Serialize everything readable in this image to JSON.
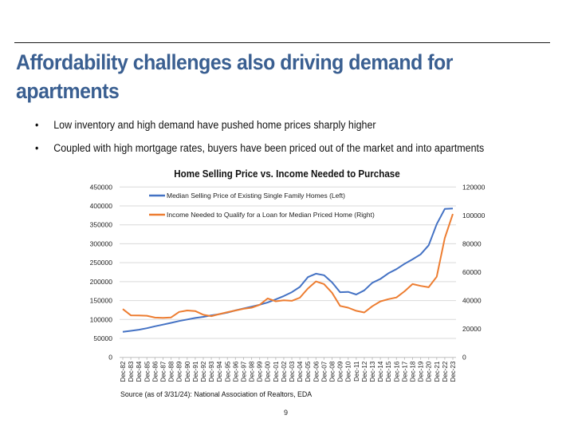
{
  "slide": {
    "title": "Affordability challenges also driving demand for apartments",
    "bullets": [
      "Low inventory and high demand have pushed home prices sharply higher",
      "Coupled with high mortgage rates, buyers have been priced out of the market and into apartments"
    ],
    "bullet_glyph": "•",
    "source": "Source (as of 3/31/24): National Association of Realtors, EDA",
    "page_number": "9",
    "title_color": "#3a5f91"
  },
  "chart_data": {
    "type": "line",
    "title": "Home Selling Price vs. Income Needed to Purchase",
    "xlabel": "",
    "ylabel_left": "",
    "ylabel_right": "",
    "grid": true,
    "legend_position": "top-left",
    "y_left": {
      "range": [
        0,
        450000
      ],
      "ticks": [
        0,
        50000,
        100000,
        150000,
        200000,
        250000,
        300000,
        350000,
        400000,
        450000
      ]
    },
    "y_right": {
      "range": [
        0,
        120000
      ],
      "ticks": [
        0,
        20000,
        40000,
        60000,
        80000,
        100000,
        120000
      ]
    },
    "x": [
      "Dec-82",
      "Dec-83",
      "Dec-84",
      "Dec-85",
      "Dec-86",
      "Dec-87",
      "Dec-88",
      "Dec-89",
      "Dec-90",
      "Dec-91",
      "Dec-92",
      "Dec-93",
      "Dec-94",
      "Dec-95",
      "Dec-96",
      "Dec-97",
      "Dec-98",
      "Dec-99",
      "Dec-00",
      "Dec-01",
      "Dec-02",
      "Dec-03",
      "Dec-04",
      "Dec-05",
      "Dec-06",
      "Dec-07",
      "Dec-08",
      "Dec-09",
      "Dec-10",
      "Dec-11",
      "Dec-12",
      "Dec-13",
      "Dec-14",
      "Dec-15",
      "Dec-16",
      "Dec-17",
      "Dec-18",
      "Dec-19",
      "Dec-20",
      "Dec-21",
      "Dec-22",
      "Dec-23"
    ],
    "series": [
      {
        "name": "Median Selling Price of Existing Single Family Homes (Left)",
        "axis": "left",
        "color": "#4472c4",
        "values": [
          67500,
          70000,
          73000,
          77000,
          82000,
          86500,
          91000,
          96000,
          100000,
          104000,
          107000,
          111000,
          114000,
          118000,
          124000,
          129000,
          134000,
          139000,
          145000,
          153000,
          162000,
          172000,
          186000,
          212000,
          221000,
          217000,
          198000,
          172000,
          173000,
          166000,
          177000,
          197000,
          207000,
          222000,
          233000,
          247000,
          259000,
          272000,
          296000,
          352000,
          392000,
          393000
        ]
      },
      {
        "name": "Income Needed to Qualify for a Loan for Median Priced Home (Right)",
        "axis": "right",
        "color": "#ed7d31",
        "values": [
          34000,
          29600,
          29500,
          29300,
          28000,
          27800,
          28100,
          32000,
          33000,
          32600,
          30000,
          29000,
          30500,
          31800,
          33000,
          34200,
          35000,
          37000,
          41500,
          39500,
          40200,
          39800,
          42000,
          48500,
          53500,
          51600,
          45500,
          36200,
          35000,
          32800,
          31600,
          36000,
          39400,
          41000,
          42200,
          46500,
          51600,
          50300,
          49400,
          56800,
          84000,
          101000
        ]
      }
    ]
  }
}
